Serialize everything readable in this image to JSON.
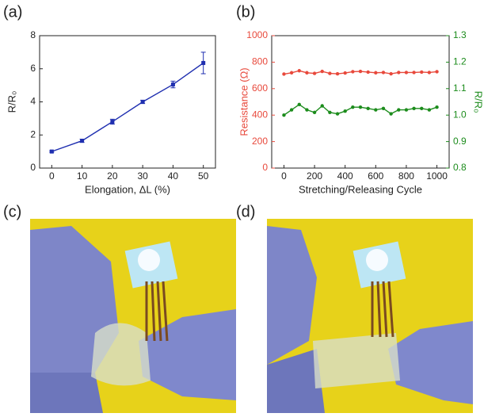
{
  "panel_labels": [
    "(a)",
    "(b)",
    "(c)",
    "(d)"
  ],
  "chart_data": [
    {
      "type": "line",
      "x_label": "Elongation, ΔL (%)",
      "y_label": "R/R₀",
      "x": [
        0,
        10,
        20,
        30,
        40,
        50
      ],
      "xlim": [
        -4,
        54
      ],
      "xticks": [
        0,
        10,
        20,
        30,
        40,
        50
      ],
      "ylim": [
        0,
        8
      ],
      "yticks": [
        0,
        2,
        4,
        6,
        8
      ],
      "series": [
        {
          "color": "#1f2fb0",
          "values": [
            1.0,
            1.65,
            2.8,
            4.0,
            5.05,
            6.35
          ],
          "errors": [
            0.05,
            0.1,
            0.15,
            0.1,
            0.2,
            0.65
          ]
        }
      ]
    },
    {
      "type": "line",
      "x_label": "Stretching/Releasing Cycle",
      "y_label": "Resistance (Ω)",
      "y2_label": "R/R₀",
      "x": [
        0,
        50,
        100,
        150,
        200,
        250,
        300,
        350,
        400,
        450,
        500,
        550,
        600,
        650,
        700,
        750,
        800,
        850,
        900,
        950,
        1000
      ],
      "xlim": [
        -80,
        1080
      ],
      "xticks": [
        0,
        200,
        400,
        600,
        800,
        1000
      ],
      "ylim": [
        0,
        1000
      ],
      "yticks": [
        0,
        200,
        400,
        600,
        800,
        1000
      ],
      "y2lim": [
        0.8,
        1.3
      ],
      "y2ticks": [
        {
          "value": 0.8,
          "label": "0.8"
        },
        {
          "value": 0.9,
          "label": "0.9"
        },
        {
          "value": 1.0,
          "label": "1.0"
        },
        {
          "value": 1.1,
          "label": "1.1"
        },
        {
          "value": 1.2,
          "label": "1.2"
        },
        {
          "value": 1.3,
          "label": "1.3"
        }
      ],
      "series": [
        {
          "color": "#e8493c",
          "values": [
            710,
            720,
            735,
            720,
            715,
            730,
            715,
            712,
            718,
            728,
            730,
            725,
            720,
            722,
            712,
            722,
            722,
            722,
            725,
            722,
            728
          ]
        },
        {
          "color": "#1c8c1c",
          "axis": "y2",
          "values": [
            1.0,
            1.02,
            1.04,
            1.02,
            1.01,
            1.035,
            1.01,
            1.005,
            1.015,
            1.03,
            1.03,
            1.025,
            1.02,
            1.025,
            1.005,
            1.02,
            1.02,
            1.025,
            1.025,
            1.02,
            1.03
          ]
        }
      ]
    }
  ]
}
